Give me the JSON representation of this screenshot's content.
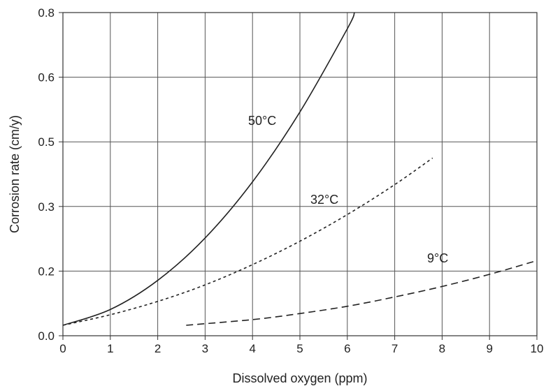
{
  "chart_data": {
    "type": "line",
    "title": "",
    "xlabel": "Dissolved oxygen (ppm)",
    "ylabel": "Corrosion rate (cm/y)",
    "xlim": [
      0,
      10
    ],
    "ylim": [
      0,
      0.8
    ],
    "x_ticks": [
      "0",
      "1",
      "2",
      "3",
      "4",
      "5",
      "6",
      "7",
      "8",
      "9",
      "10"
    ],
    "y_ticks": [
      "0.0",
      "0.2",
      "0.3",
      "0.5",
      "0.6",
      "0.8"
    ],
    "grid": true,
    "series": [
      {
        "name": "50°C",
        "style": "solid",
        "color": "#222222",
        "x": [
          0,
          1,
          2,
          3,
          4,
          5,
          6,
          6.15
        ],
        "y": [
          0.026,
          0.065,
          0.137,
          0.242,
          0.381,
          0.554,
          0.76,
          0.8
        ]
      },
      {
        "name": "32°C",
        "style": "dotted",
        "color": "#222222",
        "x": [
          0,
          1,
          2,
          3,
          4,
          5,
          6,
          7,
          7.8
        ],
        "y": [
          0.026,
          0.052,
          0.085,
          0.126,
          0.176,
          0.234,
          0.3,
          0.374,
          0.44
        ]
      },
      {
        "name": "9°C",
        "style": "dashed",
        "color": "#222222",
        "x": [
          2.6,
          4,
          5,
          6,
          7,
          8,
          9,
          10
        ],
        "y": [
          0.026,
          0.04,
          0.055,
          0.073,
          0.096,
          0.122,
          0.152,
          0.186
        ]
      }
    ]
  }
}
